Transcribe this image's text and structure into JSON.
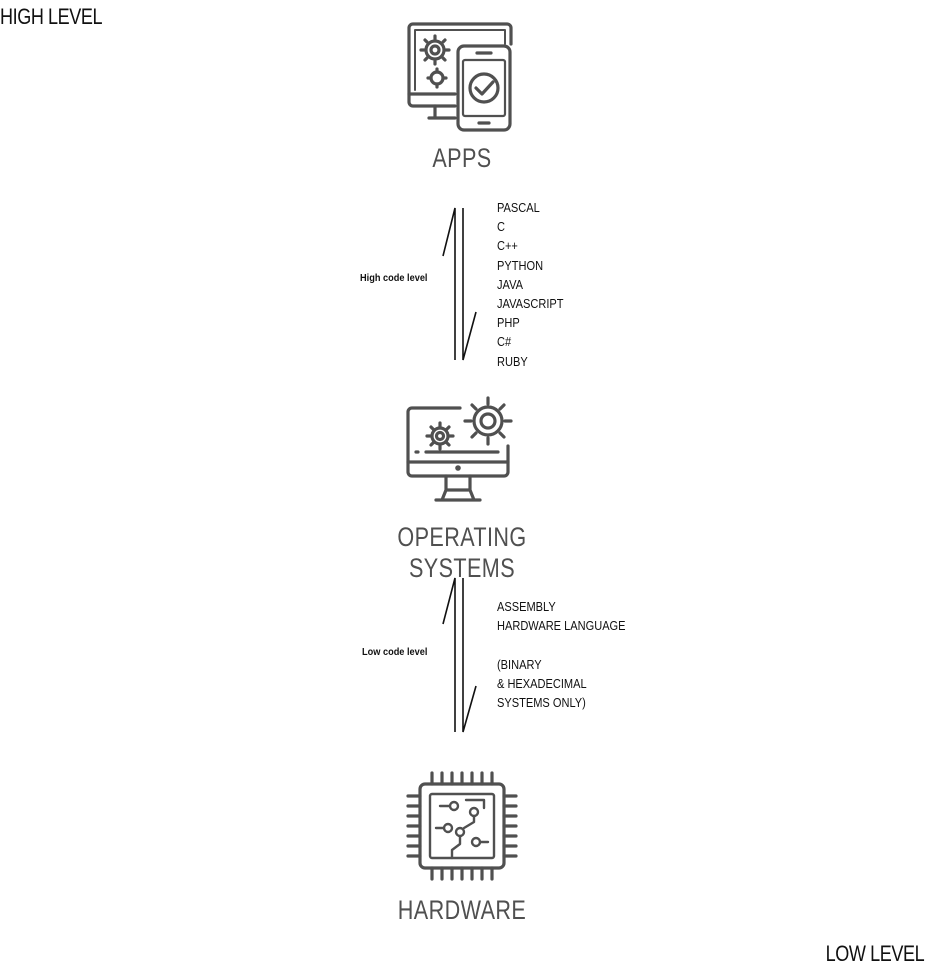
{
  "corners": {
    "high": "HIGH LEVEL",
    "low": "LOW LEVEL"
  },
  "layers": {
    "apps": {
      "label": "APPS",
      "icon": "devices-gear-check-icon"
    },
    "os": {
      "label": "OPERATING SYSTEMS",
      "icon": "monitor-gears-icon"
    },
    "hardware": {
      "label": "HARDWARE",
      "icon": "chip-icon"
    }
  },
  "high_code": {
    "label": "High code level",
    "languages": [
      "PASCAL",
      "C",
      "C++",
      "PYTHON",
      "JAVA",
      "JAVASCRIPT",
      "PHP",
      "C#",
      "RUBY"
    ]
  },
  "low_code": {
    "label": "Low code level",
    "languages": [
      "ASSEMBLY",
      "HARDWARE LANGUAGE",
      "",
      "(BINARY",
      "& HEXADECIMAL",
      "SYSTEMS ONLY)"
    ]
  },
  "colors": {
    "icon_stroke": "#505050",
    "text": "#111111",
    "label": "#505050"
  }
}
